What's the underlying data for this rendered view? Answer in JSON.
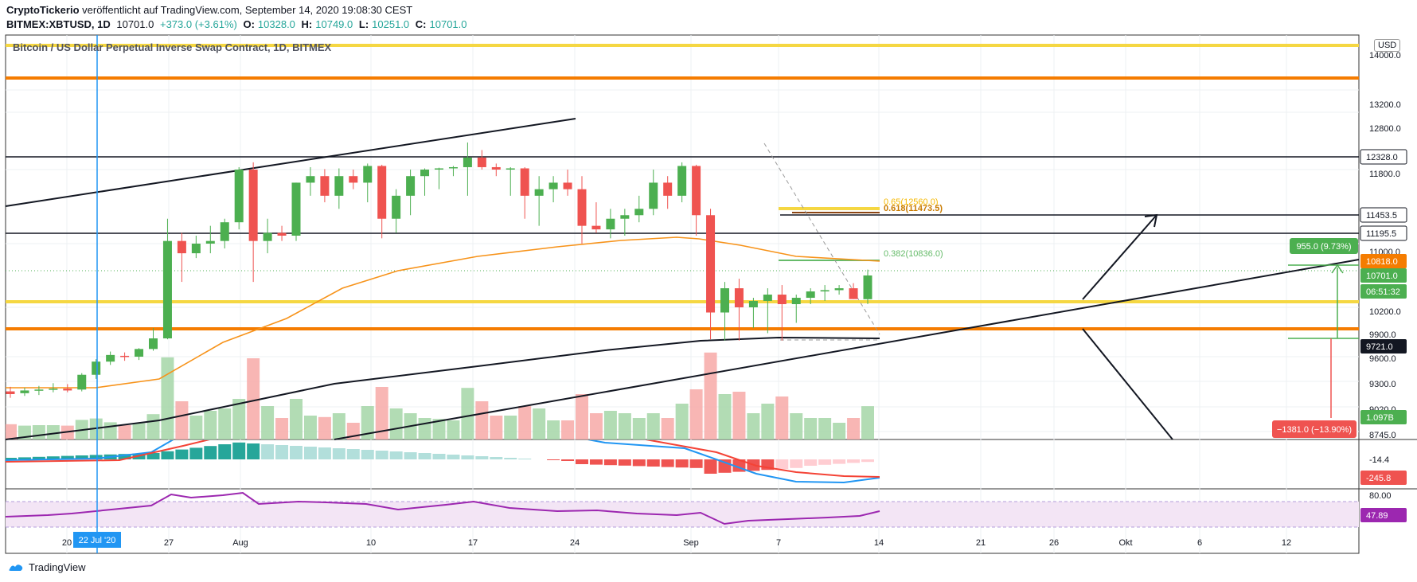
{
  "header": {
    "author": "CryptoTickerio",
    "published": "veröffentlicht auf TradingView.com, September 14, 2020 19:08:30 CEST",
    "symbol": "BITMEX:XBTUSD, 1D",
    "last": "10701.0",
    "change": "+373.0 (+3.61%)",
    "o_label": "O:",
    "o": "10328.0",
    "h_label": "H:",
    "h": "10749.0",
    "l_label": "L:",
    "l": "10251.0",
    "c_label": "C:",
    "c": "10701.0"
  },
  "chart_title": "Bitcoin / US Dollar Perpetual Inverse Swap Contract, 1D, BITMEX",
  "currency_badge": "USD",
  "footer": {
    "brand": "TradingView"
  },
  "colors": {
    "up": "#4caf50",
    "down": "#ef5350",
    "volume_up": "#a5d6a7",
    "volume_down": "#f7a9a7",
    "ema": "#f7931a",
    "yellow": "#f5d742",
    "orange": "#f57c00",
    "macd": "#2196f3",
    "signal": "#f44336",
    "rsi": "#9c27b0"
  },
  "chart_data": {
    "type": "candlestick",
    "x_ticks": [
      "20",
      "27",
      "Aug",
      "10",
      "17",
      "24",
      "Sep",
      "7",
      "14",
      "21",
      "26",
      "Okt",
      "6",
      "12"
    ],
    "date_marker": "22 Jul '20",
    "y_ticks": [
      "14000.0",
      "13200.0",
      "12800.0",
      "11800.0",
      "11000.0",
      "10200.0",
      "9900.0",
      "9600.0",
      "9300.0",
      "9020.0",
      "8745.0"
    ],
    "price_labels": [
      "12328.0",
      "11453.5",
      "11195.5",
      "10818.0",
      "10701.0",
      "06:51:32",
      "9721.0"
    ],
    "volume_label": "1.097B",
    "macd_labels": [
      "-14.4",
      "-245.8"
    ],
    "rsi_labels": [
      "80.00",
      "47.89"
    ],
    "fib_labels": [
      "0.65(12560.0)",
      "0.618(11473.5)",
      "0.382(10836.0)"
    ],
    "measure_up": "955.0 (9.73%)",
    "measure_down": "−1381.0 (−13.90%)",
    "candles": [
      {
        "o": 9190,
        "h": 9240,
        "l": 9120,
        "c": 9160
      },
      {
        "o": 9170,
        "h": 9230,
        "l": 9140,
        "c": 9200
      },
      {
        "o": 9200,
        "h": 9250,
        "l": 9150,
        "c": 9210
      },
      {
        "o": 9210,
        "h": 9280,
        "l": 9180,
        "c": 9220
      },
      {
        "o": 9220,
        "h": 9270,
        "l": 9180,
        "c": 9200
      },
      {
        "o": 9210,
        "h": 9400,
        "l": 9190,
        "c": 9380
      },
      {
        "o": 9380,
        "h": 9570,
        "l": 9330,
        "c": 9540
      },
      {
        "o": 9540,
        "h": 9660,
        "l": 9500,
        "c": 9620
      },
      {
        "o": 9610,
        "h": 9650,
        "l": 9550,
        "c": 9600
      },
      {
        "o": 9600,
        "h": 9700,
        "l": 9560,
        "c": 9690
      },
      {
        "o": 9690,
        "h": 10000,
        "l": 9670,
        "c": 9900
      },
      {
        "o": 9900,
        "h": 11400,
        "l": 9880,
        "c": 11050
      },
      {
        "o": 11050,
        "h": 11200,
        "l": 10600,
        "c": 10900
      },
      {
        "o": 10900,
        "h": 11150,
        "l": 10850,
        "c": 11000
      },
      {
        "o": 11000,
        "h": 11300,
        "l": 10900,
        "c": 11050
      },
      {
        "o": 11050,
        "h": 11400,
        "l": 10950,
        "c": 11350
      },
      {
        "o": 11350,
        "h": 11900,
        "l": 11250,
        "c": 11800
      },
      {
        "o": 11800,
        "h": 12100,
        "l": 10600,
        "c": 11050
      },
      {
        "o": 11050,
        "h": 11400,
        "l": 10900,
        "c": 11200
      },
      {
        "o": 11200,
        "h": 11300,
        "l": 11050,
        "c": 11150
      },
      {
        "o": 11150,
        "h": 11700,
        "l": 11050,
        "c": 11700
      },
      {
        "o": 11700,
        "h": 11900,
        "l": 11600,
        "c": 11750
      },
      {
        "o": 11750,
        "h": 11820,
        "l": 11550,
        "c": 11600
      },
      {
        "o": 11600,
        "h": 11850,
        "l": 11500,
        "c": 11750
      },
      {
        "o": 11750,
        "h": 11800,
        "l": 11650,
        "c": 11700
      },
      {
        "o": 11700,
        "h": 12050,
        "l": 11550,
        "c": 11950
      },
      {
        "o": 11950,
        "h": 12000,
        "l": 11100,
        "c": 11400
      },
      {
        "o": 11400,
        "h": 11650,
        "l": 11200,
        "c": 11600
      },
      {
        "o": 11600,
        "h": 11800,
        "l": 11450,
        "c": 11750
      },
      {
        "o": 11750,
        "h": 11850,
        "l": 11600,
        "c": 11800
      },
      {
        "o": 11800,
        "h": 11880,
        "l": 11650,
        "c": 11850
      },
      {
        "o": 11850,
        "h": 11950,
        "l": 11750,
        "c": 11900
      },
      {
        "o": 11900,
        "h": 12480,
        "l": 11600,
        "c": 12300
      },
      {
        "o": 12300,
        "h": 12400,
        "l": 11800,
        "c": 11900
      },
      {
        "o": 11900,
        "h": 12050,
        "l": 11750,
        "c": 11800
      },
      {
        "o": 11800,
        "h": 11900,
        "l": 11600,
        "c": 11850
      },
      {
        "o": 11850,
        "h": 11900,
        "l": 11400,
        "c": 11600
      },
      {
        "o": 11600,
        "h": 11750,
        "l": 11300,
        "c": 11650
      },
      {
        "o": 11650,
        "h": 11750,
        "l": 11550,
        "c": 11700
      },
      {
        "o": 11700,
        "h": 11800,
        "l": 11600,
        "c": 11650
      },
      {
        "o": 11650,
        "h": 11750,
        "l": 11000,
        "c": 11300
      },
      {
        "o": 11300,
        "h": 11550,
        "l": 11200,
        "c": 11250
      },
      {
        "o": 11250,
        "h": 11500,
        "l": 11100,
        "c": 11400
      },
      {
        "o": 11400,
        "h": 11500,
        "l": 11150,
        "c": 11450
      },
      {
        "o": 11450,
        "h": 11600,
        "l": 11350,
        "c": 11500
      },
      {
        "o": 11500,
        "h": 11800,
        "l": 11450,
        "c": 11700
      },
      {
        "o": 11700,
        "h": 11750,
        "l": 11500,
        "c": 11600
      },
      {
        "o": 11600,
        "h": 12100,
        "l": 11550,
        "c": 11950
      },
      {
        "o": 11950,
        "h": 12000,
        "l": 11150,
        "c": 11450
      },
      {
        "o": 11450,
        "h": 11500,
        "l": 9880,
        "c": 10150
      },
      {
        "o": 10150,
        "h": 10600,
        "l": 9850,
        "c": 10500
      },
      {
        "o": 10500,
        "h": 10650,
        "l": 9850,
        "c": 10200
      },
      {
        "o": 10200,
        "h": 10350,
        "l": 10000,
        "c": 10300
      },
      {
        "o": 10300,
        "h": 10500,
        "l": 9950,
        "c": 10400
      },
      {
        "o": 10400,
        "h": 10550,
        "l": 9850,
        "c": 10250
      },
      {
        "o": 10250,
        "h": 10400,
        "l": 10050,
        "c": 10350
      },
      {
        "o": 10350,
        "h": 10500,
        "l": 10250,
        "c": 10450
      },
      {
        "o": 10450,
        "h": 10550,
        "l": 10300,
        "c": 10470
      },
      {
        "o": 10470,
        "h": 10550,
        "l": 10400,
        "c": 10500
      },
      {
        "o": 10500,
        "h": 10580,
        "l": 10330,
        "c": 10330
      },
      {
        "o": 10328,
        "h": 10749,
        "l": 10251,
        "c": 10701
      }
    ]
  }
}
